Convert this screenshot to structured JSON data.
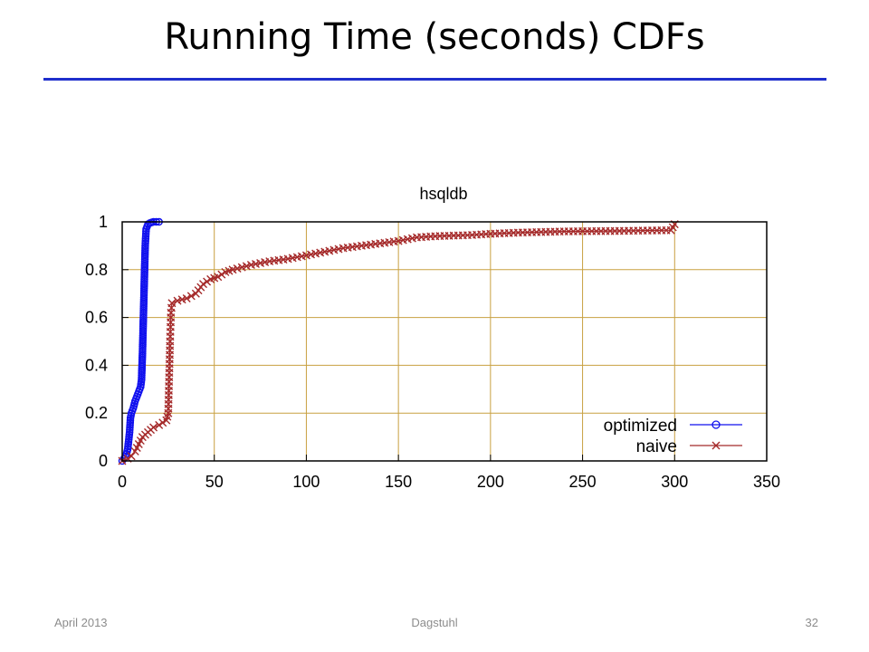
{
  "slide": {
    "title": "Running Time (seconds) CDFs",
    "footer_left": "April 2013",
    "footer_center": "Dagstuhl",
    "footer_right": "32"
  },
  "colors": {
    "rule": "#1f2fcc",
    "grid": "#c8a040",
    "optimized": "#1010ee",
    "naive": "#a52a2a"
  },
  "chart_data": {
    "type": "line",
    "title": "hsqldb",
    "xlabel": "",
    "ylabel": "",
    "xlim": [
      0,
      350
    ],
    "ylim": [
      0,
      1
    ],
    "xticks": [
      0,
      50,
      100,
      150,
      200,
      250,
      300,
      350
    ],
    "yticks": [
      0,
      0.2,
      0.4,
      0.6,
      0.8,
      1
    ],
    "ytick_labels": [
      "0",
      "0.2",
      "0.4",
      "0.6",
      "0.8",
      "1"
    ],
    "grid": true,
    "legend_position": "bottom-right",
    "series": [
      {
        "name": "optimized",
        "marker": "circle",
        "points": [
          [
            0,
            0.0
          ],
          [
            1,
            0.01
          ],
          [
            2,
            0.02
          ],
          [
            3,
            0.05
          ],
          [
            4,
            0.12
          ],
          [
            4.5,
            0.18
          ],
          [
            5,
            0.2
          ],
          [
            6,
            0.22
          ],
          [
            7,
            0.25
          ],
          [
            8,
            0.27
          ],
          [
            9,
            0.29
          ],
          [
            10,
            0.31
          ],
          [
            10.5,
            0.34
          ],
          [
            11,
            0.45
          ],
          [
            11.5,
            0.6
          ],
          [
            12,
            0.75
          ],
          [
            12.5,
            0.9
          ],
          [
            13,
            0.97
          ],
          [
            14,
            0.99
          ],
          [
            15,
            0.995
          ],
          [
            17,
            1.0
          ],
          [
            20,
            1.0
          ]
        ]
      },
      {
        "name": "naive",
        "marker": "x",
        "points": [
          [
            0,
            0.0
          ],
          [
            3,
            0.01
          ],
          [
            5,
            0.02
          ],
          [
            7,
            0.04
          ],
          [
            9,
            0.07
          ],
          [
            11,
            0.1
          ],
          [
            14,
            0.12
          ],
          [
            17,
            0.14
          ],
          [
            20,
            0.15
          ],
          [
            22,
            0.16
          ],
          [
            24,
            0.17
          ],
          [
            25,
            0.2
          ],
          [
            25.5,
            0.35
          ],
          [
            26,
            0.5
          ],
          [
            26.5,
            0.62
          ],
          [
            27,
            0.66
          ],
          [
            30,
            0.67
          ],
          [
            35,
            0.68
          ],
          [
            40,
            0.7
          ],
          [
            44,
            0.74
          ],
          [
            48,
            0.76
          ],
          [
            52,
            0.77
          ],
          [
            56,
            0.79
          ],
          [
            60,
            0.8
          ],
          [
            65,
            0.81
          ],
          [
            70,
            0.82
          ],
          [
            80,
            0.835
          ],
          [
            90,
            0.845
          ],
          [
            100,
            0.86
          ],
          [
            110,
            0.875
          ],
          [
            120,
            0.89
          ],
          [
            130,
            0.9
          ],
          [
            140,
            0.91
          ],
          [
            150,
            0.92
          ],
          [
            160,
            0.935
          ],
          [
            170,
            0.94
          ],
          [
            190,
            0.945
          ],
          [
            200,
            0.95
          ],
          [
            215,
            0.955
          ],
          [
            230,
            0.958
          ],
          [
            240,
            0.96
          ],
          [
            270,
            0.962
          ],
          [
            298,
            0.965
          ],
          [
            300,
            0.99
          ]
        ]
      }
    ]
  }
}
